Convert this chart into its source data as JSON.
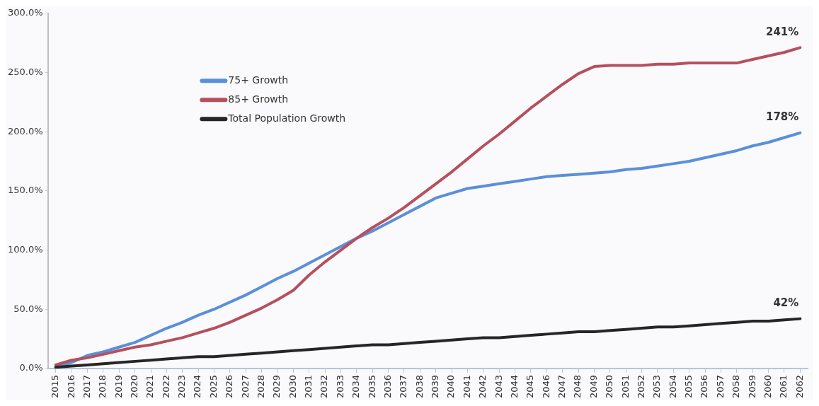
{
  "chart_data": {
    "type": "line",
    "categories": [
      "2015",
      "2016",
      "2017",
      "2018",
      "2019",
      "2020",
      "2021",
      "2022",
      "2023",
      "2024",
      "2025",
      "2026",
      "2027",
      "2028",
      "2029",
      "2030",
      "2031",
      "2032",
      "2033",
      "2034",
      "2035",
      "2036",
      "2037",
      "2038",
      "2039",
      "2040",
      "2041",
      "2042",
      "2043",
      "2044",
      "2045",
      "2046",
      "2047",
      "2048",
      "2049",
      "2050",
      "2051",
      "2052",
      "2053",
      "2054",
      "2055",
      "2056",
      "2057",
      "2058",
      "2059",
      "2060",
      "2061",
      "2062"
    ],
    "series": [
      {
        "name": "75+ Growth",
        "color": "#5b8fd9",
        "values": [
          1,
          5,
          11,
          14,
          18,
          22,
          28,
          34,
          39,
          45,
          50,
          56,
          62,
          69,
          76,
          82,
          89,
          96,
          103,
          110,
          116,
          123,
          130,
          137,
          144,
          148,
          152,
          154,
          156,
          158,
          160,
          162,
          163,
          164,
          165,
          166,
          168,
          169,
          171,
          173,
          175,
          178,
          181,
          184,
          188,
          191,
          195,
          199
        ]
      },
      {
        "name": "85+ Growth",
        "color": "#b5505e",
        "values": [
          3,
          7,
          9,
          12,
          15,
          18,
          20,
          23,
          26,
          30,
          34,
          39,
          45,
          51,
          58,
          66,
          79,
          90,
          100,
          110,
          119,
          127,
          136,
          146,
          156,
          166,
          177,
          188,
          198,
          209,
          220,
          230,
          240,
          249,
          255,
          256,
          256,
          256,
          257,
          257,
          258,
          258,
          258,
          258,
          261,
          264,
          267,
          271
        ]
      },
      {
        "name": "Total Population Growth",
        "color": "#262626",
        "values": [
          1,
          2,
          3,
          4,
          5,
          6,
          7,
          8,
          9,
          10,
          10,
          11,
          12,
          13,
          14,
          15,
          16,
          17,
          18,
          19,
          20,
          20,
          21,
          22,
          23,
          24,
          25,
          26,
          26,
          27,
          28,
          29,
          30,
          31,
          31,
          32,
          33,
          34,
          35,
          35,
          36,
          37,
          38,
          39,
          40,
          40,
          41,
          42
        ]
      }
    ],
    "ylim": [
      0,
      300
    ],
    "yticks": [
      {
        "value": 0,
        "label": "0.0%"
      },
      {
        "value": 50,
        "label": "50.0%"
      },
      {
        "value": 100,
        "label": "100.0%"
      },
      {
        "value": 150,
        "label": "150.0%"
      },
      {
        "value": 200,
        "label": "200.0%"
      },
      {
        "value": 250,
        "label": "250.0%"
      },
      {
        "value": 300,
        "label": "300.0%"
      }
    ],
    "annotations": [
      {
        "text": "241%",
        "x": "2062",
        "y": 271
      },
      {
        "text": "178%",
        "x": "2062",
        "y": 199
      },
      {
        "text": "42%",
        "x": "2062",
        "y": 42
      }
    ],
    "grid": false,
    "legend": "top left",
    "marker": "none",
    "line_style": "solid"
  }
}
